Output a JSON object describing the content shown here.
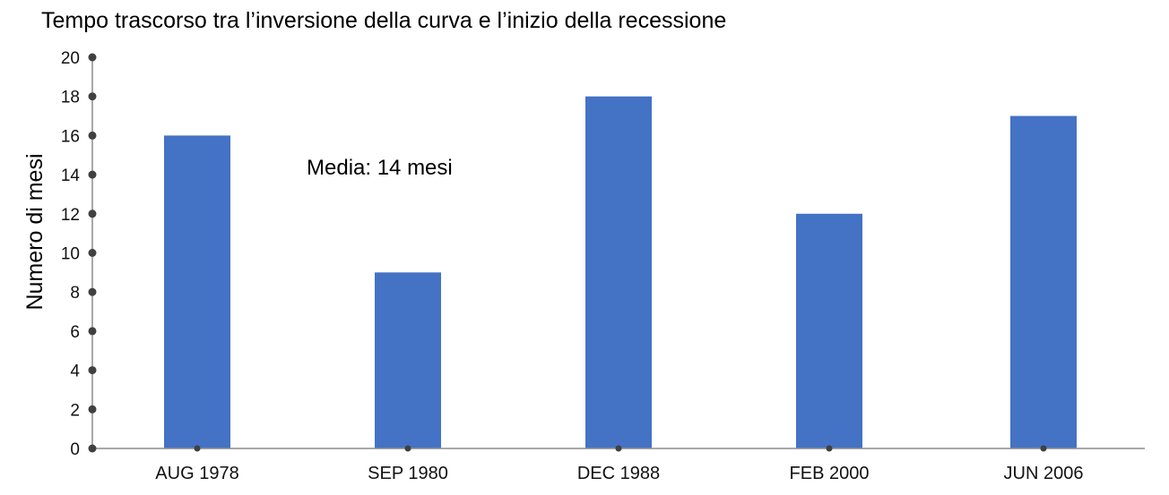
{
  "chart_data": {
    "type": "bar",
    "title": "Tempo trascorso tra l’inversione della curva e l’inizio della recessione",
    "xlabel": "",
    "ylabel": "Numero di mesi",
    "categories": [
      "AUG 1978",
      "SEP 1980",
      "DEC 1988",
      "FEB 2000",
      "JUN 2006"
    ],
    "values": [
      16,
      9,
      18,
      12,
      17
    ],
    "ylim": [
      0,
      20
    ],
    "yticks": [
      0,
      2,
      4,
      6,
      8,
      10,
      12,
      14,
      16,
      18,
      20
    ],
    "annotation": "Media: 14 mesi",
    "grid": false,
    "legend": "none",
    "bar_color": "#4472C4",
    "axis_color": "#8c8c8c",
    "tick_dot_color": "#404040"
  }
}
